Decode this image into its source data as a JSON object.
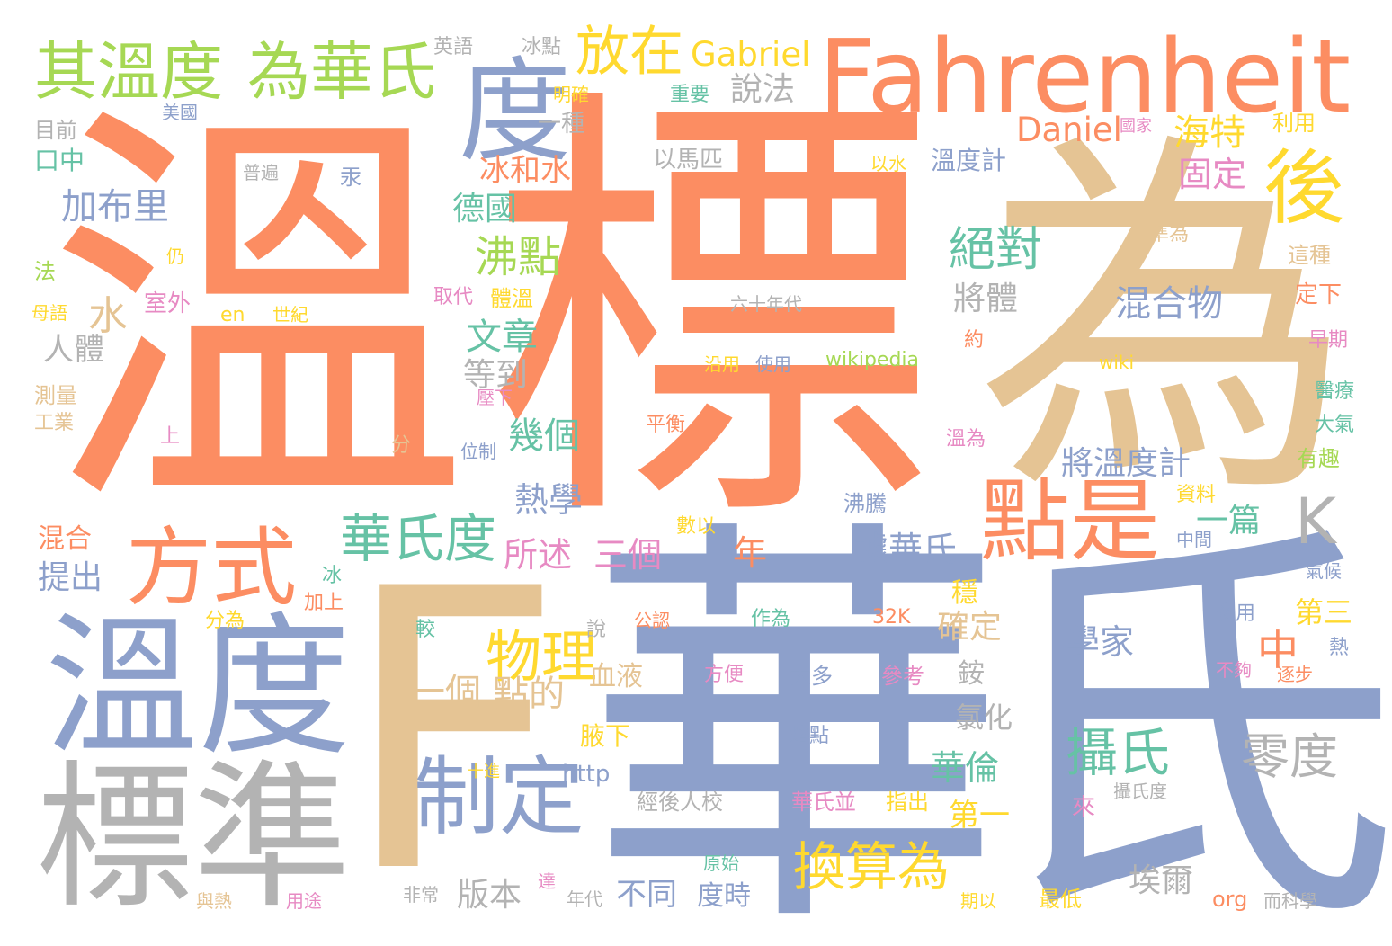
{
  "palette": {
    "orange": "#fc8d62",
    "blue": "#8da0cb",
    "tan": "#e5c494",
    "gray": "#b3b3b3",
    "green": "#66c2a5",
    "lime": "#a6d854",
    "yellow": "#ffd92f",
    "pink": "#e78ac3"
  },
  "words": {
    "w001": "溫",
    "w002": "標",
    "w003": "為",
    "w004": "華氏",
    "w005": "F",
    "w006": "溫度",
    "w007": "標準",
    "w008": "Fahrenheit",
    "w009": "度",
    "w010": "後",
    "w011": "點是",
    "w012": "方式",
    "w013": "制定",
    "w014": "其溫度",
    "w015": "為華氏",
    "w016": "K",
    "w017": "放在",
    "w018": "物理",
    "w019": "換算為",
    "w020": "華氏度",
    "w021": "攝氏",
    "w022": "零度",
    "w023": "絕對",
    "w024": "沸點",
    "w025": "Gabriel",
    "w026": "Daniel",
    "w027": "海特",
    "w028": "說法",
    "w029": "加布里",
    "w030": "德國",
    "w031": "冰和水",
    "w032": "固定",
    "w033": "混合物",
    "w034": "將體",
    "w035": "文章",
    "w036": "水",
    "w037": "人體",
    "w038": "等到",
    "w039": "幾個",
    "w040": "熱學",
    "w041": "將溫度計",
    "w042": "一篇",
    "w043": "據華氏",
    "w044": "所述",
    "w045": "三個",
    "w046": "年",
    "w047": "中",
    "w048": "第三",
    "w049": "學家",
    "w050": "確定",
    "w051": "一個",
    "w052": "點的",
    "w053": "血液",
    "w054": "氯化",
    "w055": "銨",
    "w056": "華倫",
    "w057": "第一",
    "w058": "換算為",
    "w059": "埃爾",
    "w060": "不同",
    "w061": "版本",
    "w062": "度時",
    "w063": "溫度計",
    "w064": "以馬匹",
    "w065": "一種",
    "w066": "重要",
    "w067": "明確",
    "w068": "冰點",
    "w069": "英語",
    "w070": "美國",
    "w071": "目前",
    "w072": "口中",
    "w073": "普遍",
    "w074": "汞",
    "w075": "仍",
    "w076": "法",
    "w077": "室外",
    "w078": "母語",
    "w079": "en",
    "w080": "世紀",
    "w081": "取代",
    "w082": "體溫",
    "w083": "六十年代",
    "w084": "約",
    "w085": "沿用",
    "w086": "使用",
    "w087": "wikipedia",
    "w088": "wiki",
    "w089": "以水",
    "w090": "國家",
    "w091": "利用",
    "w092": "準為",
    "w093": "這種",
    "w094": "定下",
    "w095": "早期",
    "w096": "醫療",
    "w097": "大氣",
    "w098": "有趣",
    "w099": "資料",
    "w100": "中間",
    "w101": "氣候",
    "w102": "熱",
    "w103": "逐步",
    "w104": "不夠",
    "w105": "多用",
    "w106": "測量",
    "w107": "工業",
    "w108": "上",
    "w109": "分",
    "w110": "位制",
    "w111": "壓下",
    "w112": "平衡",
    "w113": "溫為",
    "w114": "沸騰",
    "w115": "數以",
    "w116": "混合",
    "w117": "提出",
    "w118": "冰",
    "w119": "加上",
    "w120": "分為",
    "w121": "較",
    "w122": "說",
    "w123": "公認",
    "w124": "作為",
    "w125": "32K",
    "w126": "方便",
    "w127": "大多",
    "w128": "參考",
    "w129": "熔點",
    "w130": "腋下",
    "w131": "http",
    "w132": "十進",
    "w133": "經後人校",
    "w134": "華氏並",
    "w135": "指出",
    "w136": "來",
    "w137": "攝氏度",
    "w138": "原始",
    "w139": "達",
    "w140": "與熱",
    "w141": "用途",
    "w142": "非常",
    "w143": "年代",
    "w144": "期以",
    "w145": "最低",
    "w146": "org",
    "w147": "而科學",
    "w148": "穩"
  }
}
